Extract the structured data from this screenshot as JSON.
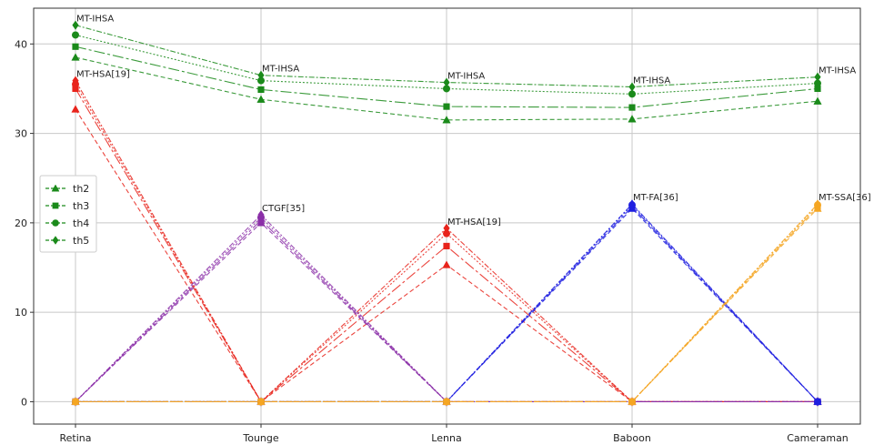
{
  "chart_data": {
    "type": "line",
    "categories": [
      "Retina",
      "Tounge",
      "Lenna",
      "Baboon",
      "Cameraman"
    ],
    "ylim": [
      -2.5,
      44
    ],
    "yticks": [
      0,
      10,
      20,
      30,
      40
    ],
    "grid": true,
    "legend": {
      "placement": "center-left",
      "entries": [
        {
          "label": "th2",
          "marker": "triangle",
          "color": "#1a8a1a"
        },
        {
          "label": "th3",
          "marker": "square",
          "color": "#1a8a1a"
        },
        {
          "label": "th4",
          "marker": "circle",
          "color": "#1a8a1a"
        },
        {
          "label": "th5",
          "marker": "diamond",
          "color": "#1a8a1a"
        }
      ]
    },
    "series": [
      {
        "group": "MT-IHSA",
        "marker": "triangle",
        "color": "#1a8a1a",
        "values": [
          38.5,
          33.8,
          31.5,
          31.6,
          33.6
        ]
      },
      {
        "group": "MT-IHSA",
        "marker": "square",
        "color": "#1a8a1a",
        "values": [
          39.7,
          34.9,
          33.0,
          32.9,
          35.0
        ]
      },
      {
        "group": "MT-IHSA",
        "marker": "circle",
        "color": "#1a8a1a",
        "values": [
          41.0,
          35.9,
          35.0,
          34.4,
          35.6
        ]
      },
      {
        "group": "MT-IHSA",
        "marker": "diamond",
        "color": "#1a8a1a",
        "values": [
          42.1,
          36.5,
          35.7,
          35.2,
          36.3
        ]
      },
      {
        "group": "MT-HSA[19]",
        "marker": "triangle",
        "color": "#e8231b",
        "values": [
          32.7,
          0,
          15.3,
          0,
          0
        ]
      },
      {
        "group": "MT-HSA[19]",
        "marker": "square",
        "color": "#e8231b",
        "values": [
          35.0,
          0,
          17.4,
          0,
          0
        ]
      },
      {
        "group": "MT-HSA[19]",
        "marker": "circle",
        "color": "#e8231b",
        "values": [
          35.5,
          0,
          18.8,
          0,
          0
        ]
      },
      {
        "group": "MT-HSA[19]",
        "marker": "diamond",
        "color": "#e8231b",
        "values": [
          35.9,
          0,
          19.4,
          0,
          0
        ]
      },
      {
        "group": "CTGF[35]",
        "marker": "triangle",
        "color": "#8b2fa8",
        "values": [
          0,
          20.0,
          0,
          0,
          0
        ]
      },
      {
        "group": "CTGF[35]",
        "marker": "square",
        "color": "#8b2fa8",
        "values": [
          0,
          20.3,
          0,
          0,
          0
        ]
      },
      {
        "group": "CTGF[35]",
        "marker": "circle",
        "color": "#8b2fa8",
        "values": [
          0,
          20.6,
          0,
          0,
          0
        ]
      },
      {
        "group": "CTGF[35]",
        "marker": "diamond",
        "color": "#8b2fa8",
        "values": [
          0,
          20.9,
          0,
          0,
          0
        ]
      },
      {
        "group": "MT-FA[36]",
        "marker": "triangle",
        "color": "#1f1fe0",
        "values": [
          0,
          0,
          0,
          21.6,
          0
        ]
      },
      {
        "group": "MT-FA[36]",
        "marker": "square",
        "color": "#1f1fe0",
        "values": [
          0,
          0,
          0,
          21.8,
          0
        ]
      },
      {
        "group": "MT-FA[36]",
        "marker": "circle",
        "color": "#1f1fe0",
        "values": [
          0,
          0,
          0,
          22.0,
          0
        ]
      },
      {
        "group": "MT-FA[36]",
        "marker": "diamond",
        "color": "#1f1fe0",
        "values": [
          0,
          0,
          0,
          22.1,
          0
        ]
      },
      {
        "group": "MT-SSA[36]",
        "marker": "triangle",
        "color": "#f5a623",
        "values": [
          0,
          0,
          0,
          0,
          21.6
        ]
      },
      {
        "group": "MT-SSA[36]",
        "marker": "square",
        "color": "#f5a623",
        "values": [
          0,
          0,
          0,
          0,
          21.8
        ]
      },
      {
        "group": "MT-SSA[36]",
        "marker": "circle",
        "color": "#f5a623",
        "values": [
          0,
          0,
          0,
          0,
          22.0
        ]
      },
      {
        "group": "MT-SSA[36]",
        "marker": "diamond",
        "color": "#f5a623",
        "values": [
          0,
          0,
          0,
          0,
          22.1
        ]
      }
    ],
    "annotations": [
      {
        "text": "MT-IHSA",
        "category": 0,
        "y": 42.1
      },
      {
        "text": "MT-HSA[19]",
        "category": 0,
        "y": 35.9
      },
      {
        "text": "MT-IHSA",
        "category": 1,
        "y": 36.5
      },
      {
        "text": "CTGF[35]",
        "category": 1,
        "y": 20.9
      },
      {
        "text": "MT-IHSA",
        "category": 2,
        "y": 35.7
      },
      {
        "text": "MT-HSA[19]",
        "category": 2,
        "y": 19.4
      },
      {
        "text": "MT-IHSA",
        "category": 3,
        "y": 35.2
      },
      {
        "text": "MT-FA[36]",
        "category": 3,
        "y": 22.1
      },
      {
        "text": "MT-IHSA",
        "category": 4,
        "y": 36.3
      },
      {
        "text": "MT-SSA[36]",
        "category": 4,
        "y": 22.1
      }
    ]
  }
}
